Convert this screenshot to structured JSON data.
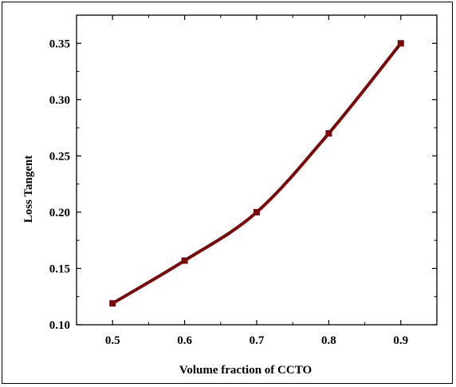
{
  "chart_data": {
    "type": "line",
    "title": "",
    "xlabel": "Volume fraction of CCTO",
    "ylabel": "Loss Tangent",
    "xlim": [
      0.45,
      0.95
    ],
    "ylim": [
      0.1,
      0.375
    ],
    "x_ticks": [
      "0.5",
      "0.6",
      "0.7",
      "0.8",
      "0.9"
    ],
    "y_ticks": [
      "0.10",
      "0.15",
      "0.20",
      "0.25",
      "0.30",
      "0.35"
    ],
    "grid": false,
    "legend": "none",
    "series": [
      {
        "color": "#7a0a0a",
        "marker": "square",
        "x": [
          0.5,
          0.6,
          0.7,
          0.8,
          0.9
        ],
        "y": [
          0.119,
          0.157,
          0.2,
          0.27,
          0.35
        ]
      }
    ]
  }
}
